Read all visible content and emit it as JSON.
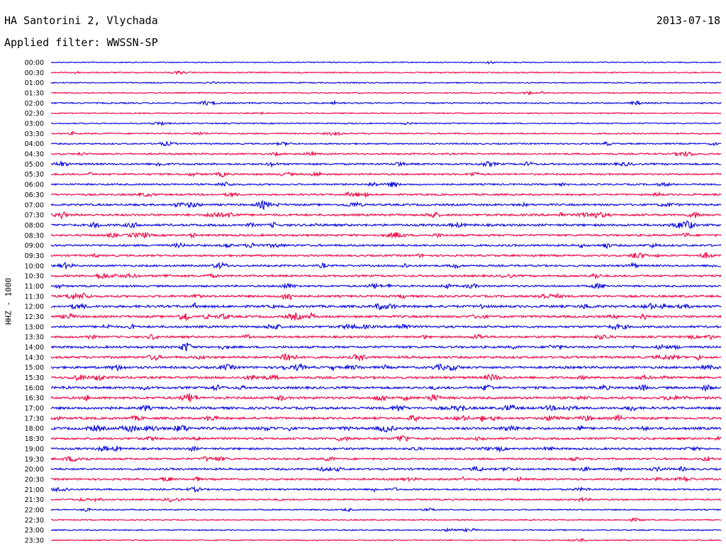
{
  "header": {
    "station": "HA Santorini 2, Vlychada",
    "date": "2013-07-18",
    "filter": "Applied filter: WWSSN-SP"
  },
  "colors": {
    "blue": "#1010e0",
    "red": "#f0104a"
  },
  "chart_data": {
    "type": "line",
    "title": "HA Santorini 2, Vlychada",
    "subtitle": "Applied filter: WWSSN-SP",
    "ylabel": "HHZ - 1000",
    "row_labels": [
      "00:00",
      "00:30",
      "01:00",
      "01:30",
      "02:00",
      "02:30",
      "03:00",
      "03:30",
      "04:00",
      "04:30",
      "05:00",
      "05:30",
      "06:00",
      "06:30",
      "07:00",
      "07:30",
      "08:00",
      "08:30",
      "09:00",
      "09:30",
      "10:00",
      "10:30",
      "11:00",
      "11:30",
      "12:00",
      "12:30",
      "13:00",
      "13:30",
      "14:00",
      "14:30",
      "15:00",
      "15:30",
      "16:00",
      "16:30",
      "17:00",
      "17:30",
      "18:00",
      "18:30",
      "19:00",
      "19:30",
      "20:00",
      "20:30",
      "21:00",
      "21:30",
      "22:00",
      "22:30",
      "23:00",
      "23:30"
    ],
    "row_colors": [
      "blue",
      "red"
    ],
    "activity_level": [
      0.05,
      0.12,
      0.08,
      0.1,
      0.2,
      0.08,
      0.1,
      0.18,
      0.2,
      0.3,
      0.4,
      0.35,
      0.3,
      0.35,
      0.45,
      0.5,
      0.55,
      0.45,
      0.45,
      0.4,
      0.4,
      0.45,
      0.4,
      0.5,
      0.6,
      0.55,
      0.5,
      0.45,
      0.5,
      0.55,
      0.55,
      0.55,
      0.55,
      0.6,
      0.6,
      0.55,
      0.65,
      0.5,
      0.45,
      0.4,
      0.45,
      0.4,
      0.3,
      0.25,
      0.15,
      0.1,
      0.12,
      0.08
    ]
  }
}
